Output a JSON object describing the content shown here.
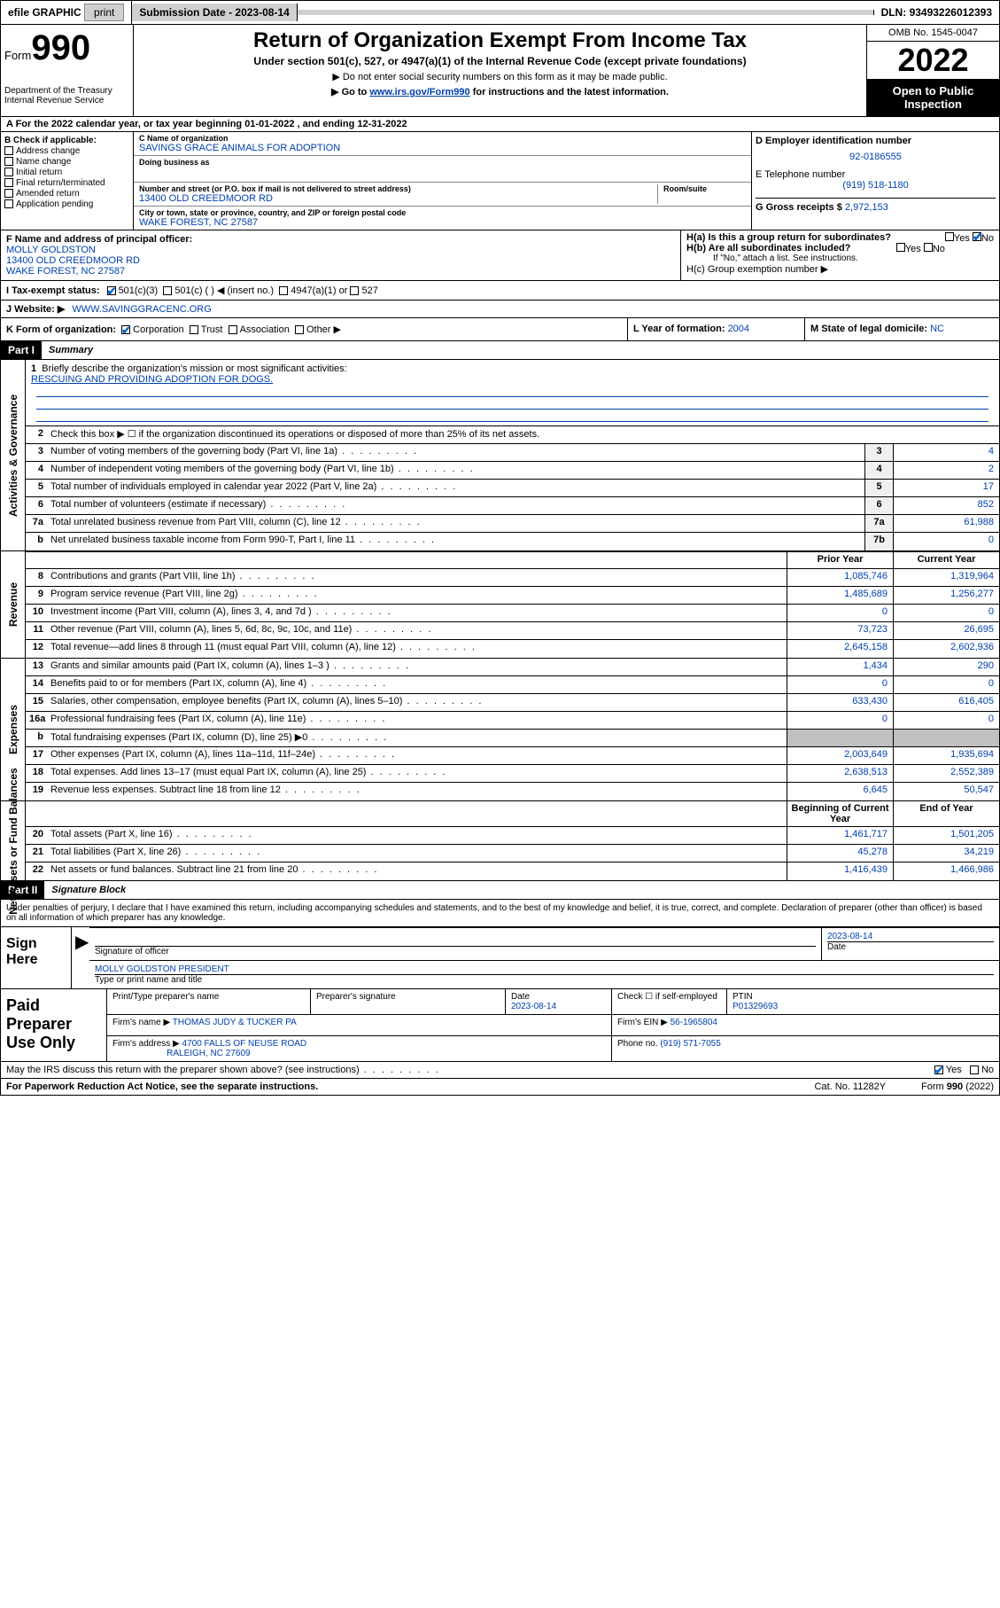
{
  "topbar": {
    "efile": "efile GRAPHIC",
    "print": "print",
    "submission_label": "Submission Date - ",
    "submission_date": "2023-08-14",
    "dln_label": "DLN: ",
    "dln": "93493226012393"
  },
  "header": {
    "form_prefix": "Form",
    "form_num": "990",
    "dept": "Department of the Treasury",
    "irs": "Internal Revenue Service",
    "title": "Return of Organization Exempt From Income Tax",
    "subtitle": "Under section 501(c), 527, or 4947(a)(1) of the Internal Revenue Code (except private foundations)",
    "note1": "▶ Do not enter social security numbers on this form as it may be made public.",
    "note2_pre": "▶ Go to ",
    "note2_link": "www.irs.gov/Form990",
    "note2_post": " for instructions and the latest information.",
    "omb": "OMB No. 1545-0047",
    "year": "2022",
    "open": "Open to Public Inspection"
  },
  "row_a": "A For the 2022 calendar year, or tax year beginning 01-01-2022  , and ending 12-31-2022",
  "col_b": {
    "label": "B Check if applicable:",
    "items": [
      "Address change",
      "Name change",
      "Initial return",
      "Final return/terminated",
      "Amended return",
      "Application pending"
    ]
  },
  "col_c": {
    "name_label": "C Name of organization",
    "name": "SAVINGS GRACE ANIMALS FOR ADOPTION",
    "dba_label": "Doing business as",
    "dba": "",
    "street_label": "Number and street (or P.O. box if mail is not delivered to street address)",
    "room_label": "Room/suite",
    "street": "13400 OLD CREEDMOOR RD",
    "city_label": "City or town, state or province, country, and ZIP or foreign postal code",
    "city": "WAKE FOREST, NC  27587"
  },
  "col_de": {
    "d_label": "D Employer identification number",
    "ein": "92-0186555",
    "e_label": "E Telephone number",
    "phone": "(919) 518-1180",
    "g_label": "G Gross receipts $ ",
    "gross": "2,972,153"
  },
  "col_f": {
    "label": "F Name and address of principal officer:",
    "name": "MOLLY GOLDSTON",
    "street": "13400 OLD CREEDMOOR RD",
    "city": "WAKE FOREST, NC  27587"
  },
  "col_h": {
    "ha": "H(a)  Is this a group return for subordinates?",
    "ha_yes": "Yes",
    "ha_no": "No",
    "hb": "H(b)  Are all subordinates included?",
    "hb_yes": "Yes",
    "hb_no": "No",
    "hb_note": "If \"No,\" attach a list. See instructions.",
    "hc": "H(c)  Group exemption number ▶"
  },
  "row_i": {
    "label": "I  Tax-exempt status:",
    "opt1": "501(c)(3)",
    "opt2": "501(c) (  ) ◀ (insert no.)",
    "opt3": "4947(a)(1) or",
    "opt4": "527"
  },
  "row_j": {
    "label": "J  Website: ▶",
    "val": "WWW.SAVINGGRACENC.ORG"
  },
  "row_k": {
    "label": "K Form of organization:",
    "opts": [
      "Corporation",
      "Trust",
      "Association",
      "Other ▶"
    ]
  },
  "row_l": {
    "label": "L Year of formation: ",
    "val": "2004"
  },
  "row_m": {
    "label": "M State of legal domicile: ",
    "val": "NC"
  },
  "parts": {
    "p1": "Part I",
    "p1t": "Summary",
    "p2": "Part II",
    "p2t": "Signature Block"
  },
  "vtabs": {
    "gov": "Activities & Governance",
    "rev": "Revenue",
    "exp": "Expenses",
    "net": "Net Assets or Fund Balances"
  },
  "summary": {
    "mission_label": "Briefly describe the organization's mission or most significant activities:",
    "mission": "RESCUING AND PROVIDING ADOPTION FOR DOGS.",
    "line2": "Check this box ▶ ☐  if the organization discontinued its operations or disposed of more than 25% of its net assets.",
    "lines_gov": [
      {
        "n": "3",
        "t": "Number of voting members of the governing body (Part VI, line 1a)",
        "k": "3",
        "v": "4"
      },
      {
        "n": "4",
        "t": "Number of independent voting members of the governing body (Part VI, line 1b)",
        "k": "4",
        "v": "2"
      },
      {
        "n": "5",
        "t": "Total number of individuals employed in calendar year 2022 (Part V, line 2a)",
        "k": "5",
        "v": "17"
      },
      {
        "n": "6",
        "t": "Total number of volunteers (estimate if necessary)",
        "k": "6",
        "v": "852"
      },
      {
        "n": "7a",
        "t": "Total unrelated business revenue from Part VIII, column (C), line 12",
        "k": "7a",
        "v": "61,988"
      },
      {
        "n": "b",
        "t": "Net unrelated business taxable income from Form 990-T, Part I, line 11",
        "k": "7b",
        "v": "0"
      }
    ],
    "col_hdr": {
      "prior": "Prior Year",
      "current": "Current Year"
    },
    "lines_rev": [
      {
        "n": "8",
        "t": "Contributions and grants (Part VIII, line 1h)",
        "p": "1,085,746",
        "c": "1,319,964"
      },
      {
        "n": "9",
        "t": "Program service revenue (Part VIII, line 2g)",
        "p": "1,485,689",
        "c": "1,256,277"
      },
      {
        "n": "10",
        "t": "Investment income (Part VIII, column (A), lines 3, 4, and 7d )",
        "p": "0",
        "c": "0"
      },
      {
        "n": "11",
        "t": "Other revenue (Part VIII, column (A), lines 5, 6d, 8c, 9c, 10c, and 11e)",
        "p": "73,723",
        "c": "26,695"
      },
      {
        "n": "12",
        "t": "Total revenue—add lines 8 through 11 (must equal Part VIII, column (A), line 12)",
        "p": "2,645,158",
        "c": "2,602,936"
      }
    ],
    "lines_exp": [
      {
        "n": "13",
        "t": "Grants and similar amounts paid (Part IX, column (A), lines 1–3 )",
        "p": "1,434",
        "c": "290"
      },
      {
        "n": "14",
        "t": "Benefits paid to or for members (Part IX, column (A), line 4)",
        "p": "0",
        "c": "0"
      },
      {
        "n": "15",
        "t": "Salaries, other compensation, employee benefits (Part IX, column (A), lines 5–10)",
        "p": "633,430",
        "c": "616,405"
      },
      {
        "n": "16a",
        "t": "Professional fundraising fees (Part IX, column (A), line 11e)",
        "p": "0",
        "c": "0"
      },
      {
        "n": "b",
        "t": "Total fundraising expenses (Part IX, column (D), line 25) ▶0",
        "p": "grey",
        "c": "grey"
      },
      {
        "n": "17",
        "t": "Other expenses (Part IX, column (A), lines 11a–11d, 11f–24e)",
        "p": "2,003,649",
        "c": "1,935,694"
      },
      {
        "n": "18",
        "t": "Total expenses. Add lines 13–17 (must equal Part IX, column (A), line 25)",
        "p": "2,638,513",
        "c": "2,552,389"
      },
      {
        "n": "19",
        "t": "Revenue less expenses. Subtract line 18 from line 12",
        "p": "6,645",
        "c": "50,547"
      }
    ],
    "net_hdr": {
      "beg": "Beginning of Current Year",
      "end": "End of Year"
    },
    "lines_net": [
      {
        "n": "20",
        "t": "Total assets (Part X, line 16)",
        "p": "1,461,717",
        "c": "1,501,205"
      },
      {
        "n": "21",
        "t": "Total liabilities (Part X, line 26)",
        "p": "45,278",
        "c": "34,219"
      },
      {
        "n": "22",
        "t": "Net assets or fund balances. Subtract line 21 from line 20",
        "p": "1,416,439",
        "c": "1,466,986"
      }
    ]
  },
  "sig": {
    "perjury": "Under penalties of perjury, I declare that I have examined this return, including accompanying schedules and statements, and to the best of my knowledge and belief, it is true, correct, and complete. Declaration of preparer (other than officer) is based on all information of which preparer has any knowledge.",
    "sign_here": "Sign Here",
    "sig_officer": "Signature of officer",
    "date": "Date",
    "sig_date": "2023-08-14",
    "officer_name": "MOLLY GOLDSTON  PRESIDENT",
    "type_name": "Type or print name and title"
  },
  "prep": {
    "title": "Paid Preparer Use Only",
    "hdr": [
      "Print/Type preparer's name",
      "Preparer's signature",
      "Date",
      "Check ☐ if self-employed",
      "PTIN"
    ],
    "row1": [
      "",
      "",
      "2023-08-14",
      "",
      "P01329693"
    ],
    "firm_name_lbl": "Firm's name    ▶",
    "firm_name": "THOMAS JUDY & TUCKER PA",
    "firm_ein_lbl": "Firm's EIN ▶",
    "firm_ein": "56-1965804",
    "firm_addr_lbl": "Firm's address ▶",
    "firm_addr1": "4700 FALLS OF NEUSE ROAD",
    "firm_addr2": "RALEIGH, NC  27609",
    "phone_lbl": "Phone no. ",
    "phone": "(919) 571-7055"
  },
  "discuss": {
    "text": "May the IRS discuss this return with the preparer shown above? (see instructions)",
    "yes": "Yes",
    "no": "No"
  },
  "footer": {
    "paperwork": "For Paperwork Reduction Act Notice, see the separate instructions.",
    "catno": "Cat. No. 11282Y",
    "formref": "Form 990 (2022)"
  }
}
